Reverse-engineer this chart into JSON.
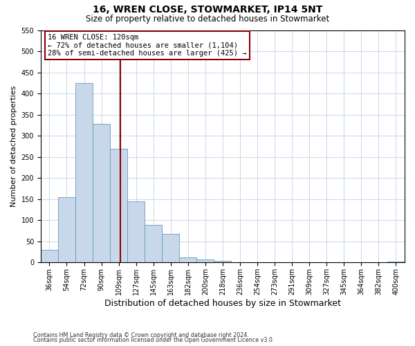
{
  "title": "16, WREN CLOSE, STOWMARKET, IP14 5NT",
  "subtitle": "Size of property relative to detached houses in Stowmarket",
  "xlabel": "Distribution of detached houses by size in Stowmarket",
  "ylabel": "Number of detached properties",
  "bin_labels": [
    "36sqm",
    "54sqm",
    "72sqm",
    "90sqm",
    "109sqm",
    "127sqm",
    "145sqm",
    "163sqm",
    "182sqm",
    "200sqm",
    "218sqm",
    "236sqm",
    "254sqm",
    "273sqm",
    "291sqm",
    "309sqm",
    "327sqm",
    "345sqm",
    "364sqm",
    "382sqm",
    "400sqm"
  ],
  "bar_heights": [
    30,
    155,
    425,
    328,
    270,
    145,
    90,
    68,
    12,
    8,
    4,
    0,
    0,
    0,
    0,
    0,
    0,
    0,
    0,
    0,
    3
  ],
  "bar_color": "#c8d8ea",
  "bar_edge_color": "#6699bb",
  "vline_color": "#8b0000",
  "annotation_title": "16 WREN CLOSE: 120sqm",
  "annotation_line1": "← 72% of detached houses are smaller (1,104)",
  "annotation_line2": "28% of semi-detached houses are larger (425) →",
  "annotation_box_color": "#8b0000",
  "ylim": [
    0,
    550
  ],
  "yticks": [
    0,
    50,
    100,
    150,
    200,
    250,
    300,
    350,
    400,
    450,
    500,
    550
  ],
  "footer1": "Contains HM Land Registry data © Crown copyright and database right 2024.",
  "footer2": "Contains public sector information licensed under the Open Government Licence v3.0.",
  "bg_color": "#ffffff",
  "grid_color": "#c8d8ea"
}
